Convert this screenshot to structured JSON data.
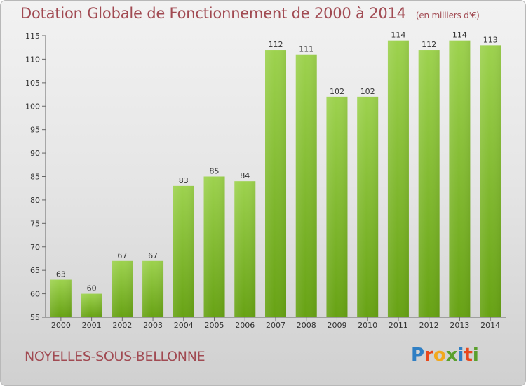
{
  "title": "Dotation Globale de Fonctionnement de 2000 à 2014",
  "unit_note": "(en milliers d'€)",
  "commune": "NOYELLES-SOUS-BELLONNE",
  "logo": {
    "text": "Proxiti",
    "colors": [
      "#2f7fc4",
      "#e8481c",
      "#f2a81d",
      "#5aa02c",
      "#2f7fc4",
      "#e8481c",
      "#5aa02c"
    ]
  },
  "colors": {
    "title": "#a14a52",
    "bar_light": "#9dd24e",
    "bar_dark": "#67a214"
  },
  "chart_data": {
    "type": "bar",
    "title": "Dotation Globale de Fonctionnement de 2000 à 2014",
    "categories": [
      "2000",
      "2001",
      "2002",
      "2003",
      "2004",
      "2005",
      "2006",
      "2007",
      "2008",
      "2009",
      "2010",
      "2011",
      "2012",
      "2013",
      "2014"
    ],
    "values": [
      63,
      60,
      67,
      67,
      83,
      85,
      84,
      112,
      111,
      102,
      102,
      114,
      112,
      114,
      113
    ],
    "ylim": [
      55,
      115
    ],
    "yticks": [
      55,
      60,
      65,
      70,
      75,
      80,
      85,
      90,
      95,
      100,
      105,
      110,
      115
    ],
    "grid": false,
    "data_labels": true
  }
}
